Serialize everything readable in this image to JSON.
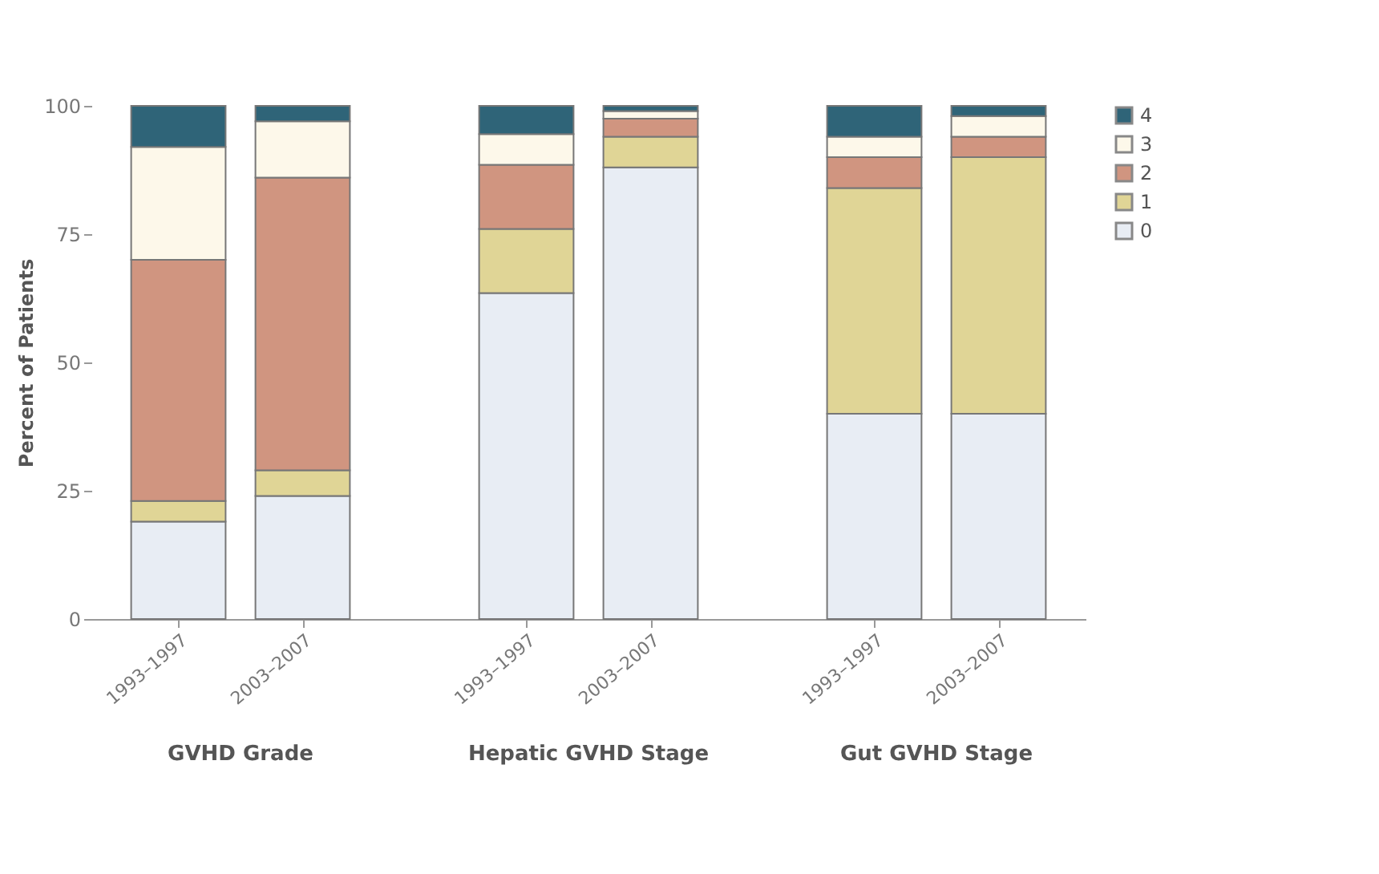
{
  "chart_data": {
    "type": "bar",
    "stacked": true,
    "ylabel": "Percent of Patients",
    "categories": [
      "1993–1997",
      "2003–2007",
      "1993–1997",
      "2003–2007",
      "1993–1997",
      "2003–2007"
    ],
    "annotations": [
      "GVHD Grade",
      "Hepatic GVHD Stage",
      "Gut GVHD Stage"
    ],
    "series": [
      {
        "name": "0",
        "color": "#e8edf4",
        "values": [
          19,
          24,
          63.5,
          88,
          40,
          40
        ]
      },
      {
        "name": "1",
        "color": "#e0d596",
        "values": [
          4,
          5,
          12.5,
          6,
          44,
          50
        ]
      },
      {
        "name": "2",
        "color": "#d09580",
        "values": [
          47,
          57,
          12.5,
          3.5,
          6,
          4
        ]
      },
      {
        "name": "3",
        "color": "#fdf8ea",
        "values": [
          22,
          11,
          6,
          1.5,
          4,
          4
        ]
      },
      {
        "name": "4",
        "color": "#2f6478",
        "values": [
          8,
          3,
          5.5,
          1,
          6,
          2
        ]
      }
    ],
    "ylim": [
      0,
      100
    ],
    "yticks": [
      0,
      25,
      50,
      75,
      100
    ],
    "grid": false,
    "legend": "top right"
  }
}
